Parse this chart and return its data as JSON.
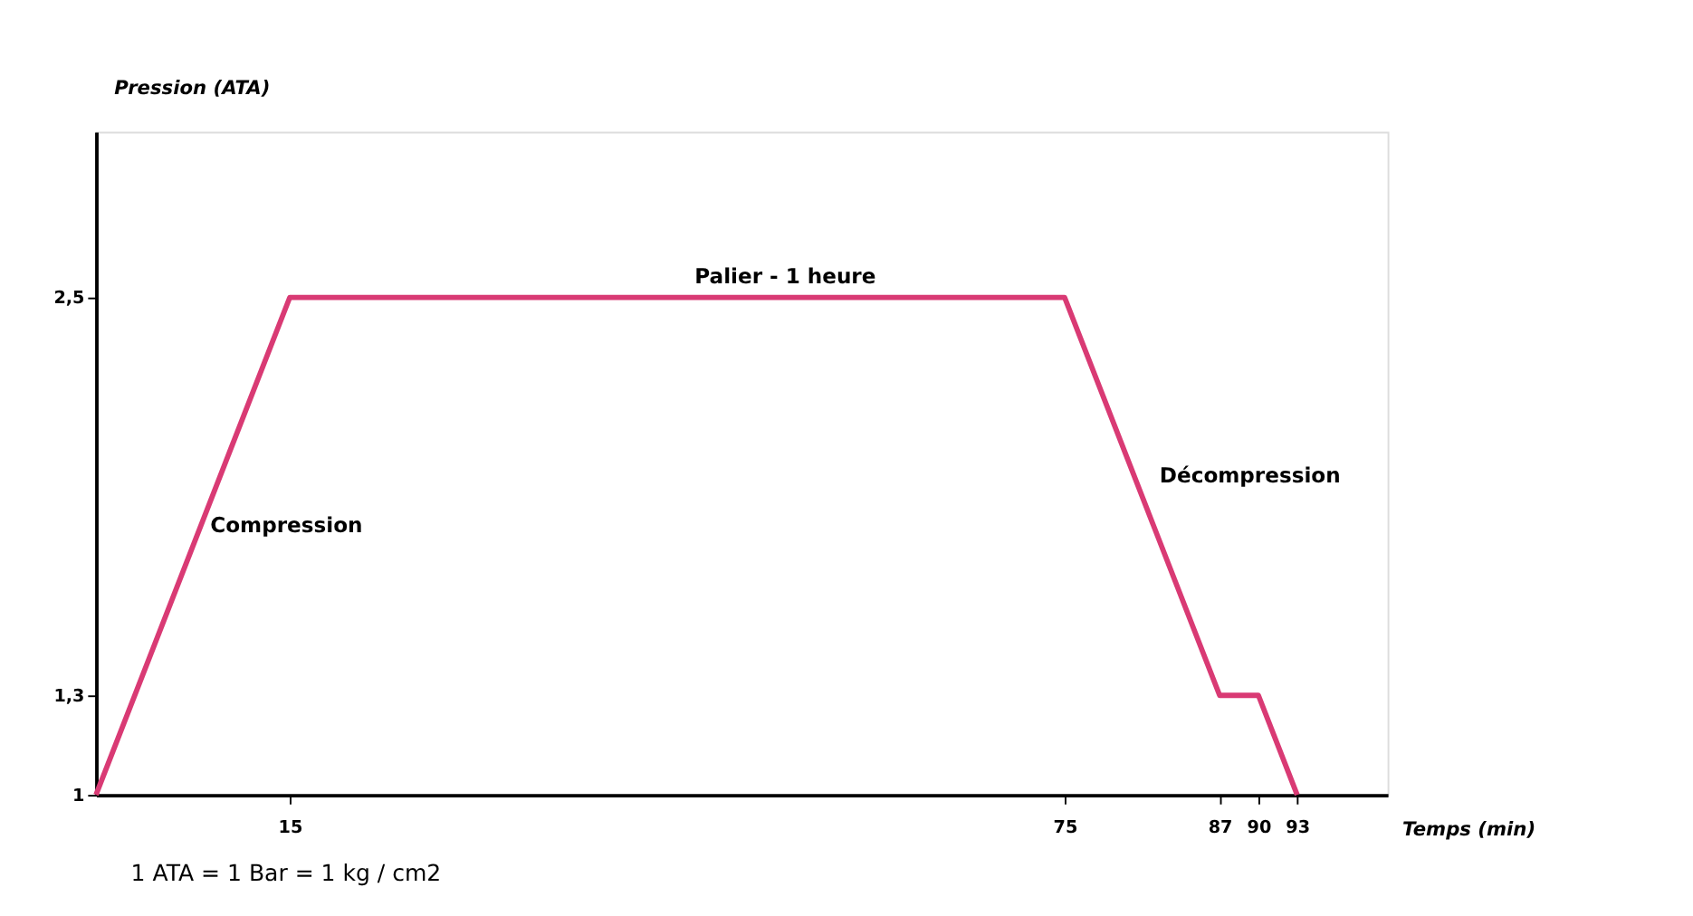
{
  "chart_data": {
    "type": "line",
    "xlabel": "Temps (min)",
    "ylabel": "Pression (ATA)",
    "x": [
      0,
      15,
      75,
      87,
      90,
      93
    ],
    "series": [
      {
        "color": "#d93a74",
        "values": [
          1,
          2.5,
          2.5,
          1.3,
          1.3,
          1
        ]
      }
    ],
    "xlim": [
      0,
      100
    ],
    "ylim": [
      1,
      3
    ],
    "xticks": [
      15,
      75,
      87,
      90,
      93
    ],
    "yticks": [
      1,
      {
        "value": 1.3,
        "label": "1,3"
      },
      {
        "value": 2.5,
        "label": "2,5"
      }
    ],
    "grid": false,
    "marker": "none",
    "line_style": "solid",
    "annotations": [
      {
        "text": "Compression",
        "x": 7.5,
        "y": 1.75
      },
      {
        "text": "Palier - 1 heure",
        "x": 45,
        "y": 2.5
      },
      {
        "text": "Décompression",
        "x": 81,
        "y": 1.9
      },
      "1 ATA = 1 Bar = 1 kg / cm2"
    ]
  }
}
